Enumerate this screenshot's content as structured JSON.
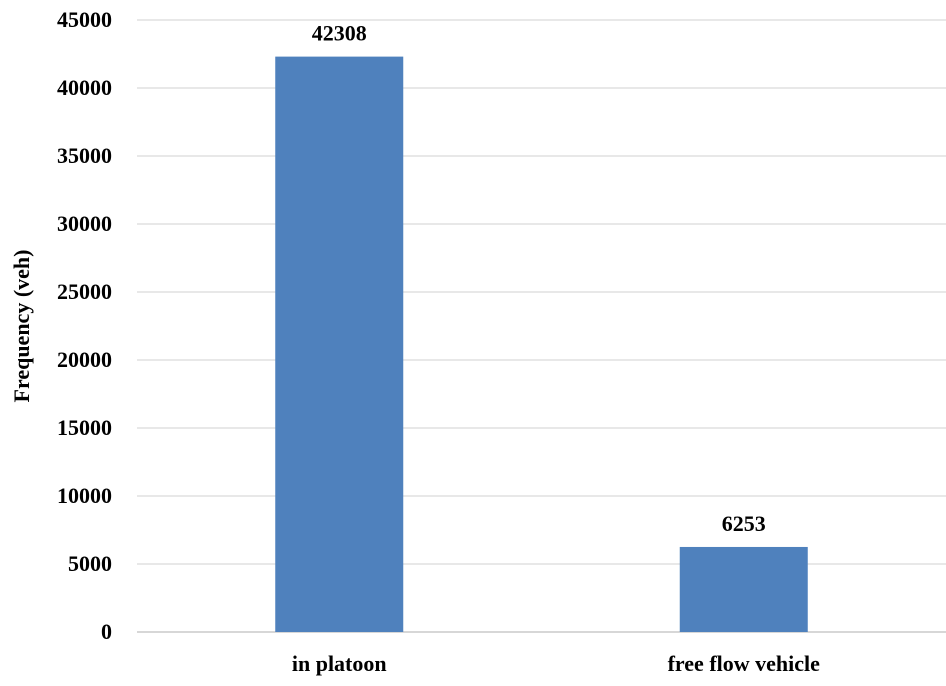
{
  "chart_data": {
    "type": "bar",
    "title": "",
    "xlabel": "",
    "ylabel": "Frequency (veh)",
    "categories": [
      "in platoon",
      "free flow vehicle"
    ],
    "values": [
      42308,
      6253
    ],
    "data_labels": [
      "42308",
      "6253"
    ],
    "ylim": [
      0,
      45000
    ],
    "yticks": [
      0,
      5000,
      10000,
      15000,
      20000,
      25000,
      30000,
      35000,
      40000,
      45000
    ],
    "ytick_labels": [
      "0",
      "5000",
      "10000",
      "15000",
      "20000",
      "25000",
      "30000",
      "35000",
      "40000",
      "45000"
    ],
    "grid": true,
    "legend": "none",
    "bar_color": "#4f81bd",
    "grid_color": "#d9d9d9"
  }
}
